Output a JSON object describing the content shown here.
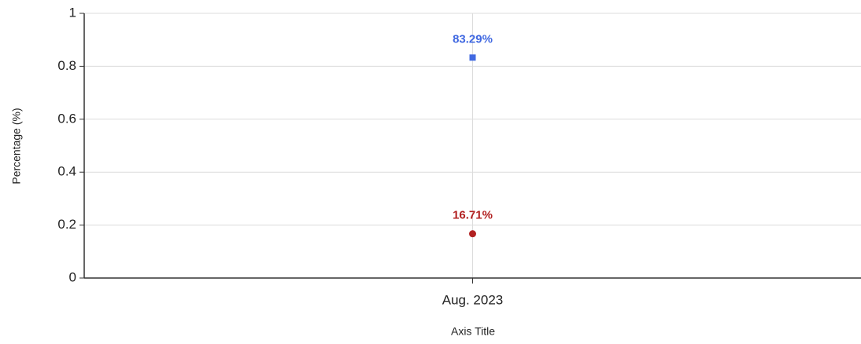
{
  "chart_data": {
    "type": "line",
    "categories": [
      "Aug. 2023"
    ],
    "series": [
      {
        "color": "#4169e1",
        "marker": "square",
        "values": [
          0.8329
        ],
        "value_labels": [
          "83.29%"
        ]
      },
      {
        "color": "#b22222",
        "marker": "circle",
        "values": [
          0.1671
        ],
        "value_labels": [
          "16.71%"
        ]
      }
    ],
    "ylim": [
      0,
      1
    ],
    "yticks": [
      0,
      0.2,
      0.4,
      0.6,
      0.8,
      1
    ],
    "x_label": "Axis Title",
    "y_label": "Percentage (%)",
    "grid": true
  }
}
